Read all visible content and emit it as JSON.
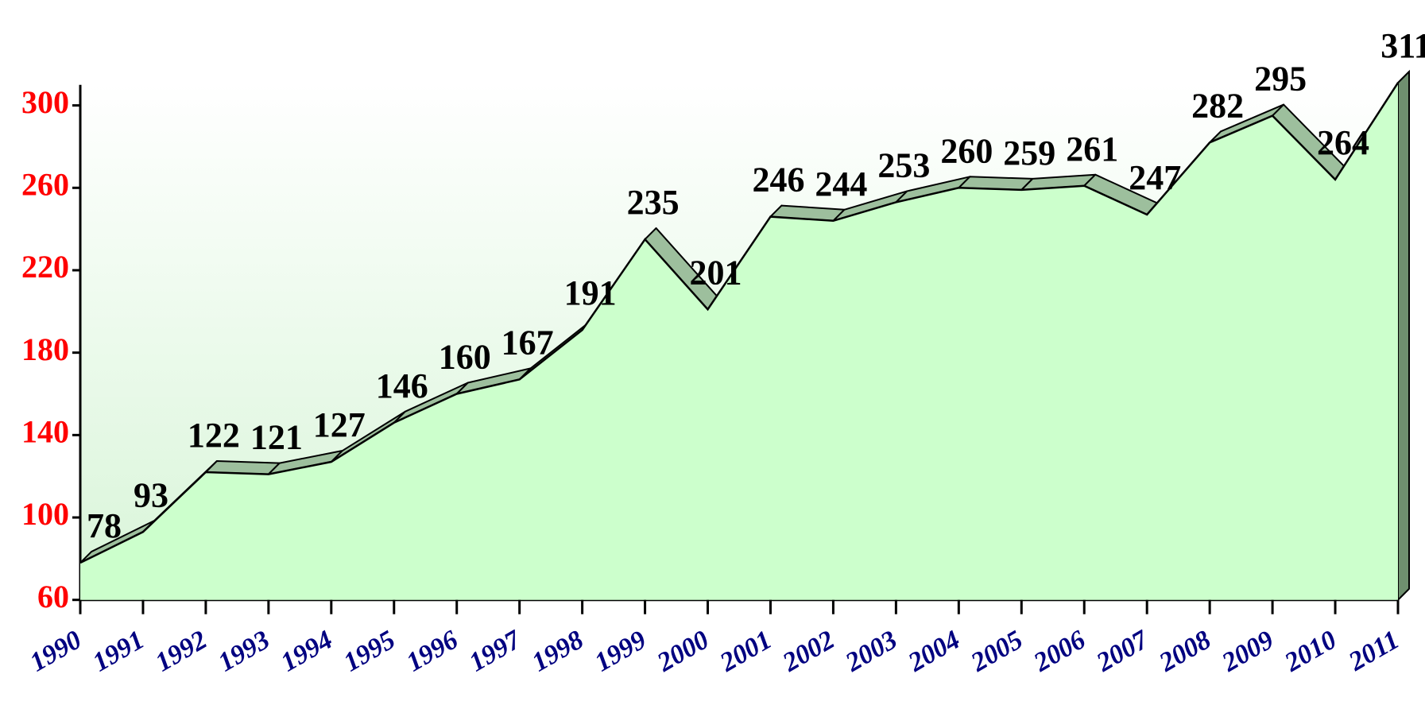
{
  "chart_data": {
    "type": "area3d",
    "categories": [
      "1990",
      "1991",
      "1992",
      "1993",
      "1994",
      "1995",
      "1996",
      "1997",
      "1998",
      "1999",
      "2000",
      "2001",
      "2002",
      "2003",
      "2004",
      "2005",
      "2006",
      "2007",
      "2008",
      "2009",
      "2010",
      "2011"
    ],
    "values": [
      78,
      93,
      122,
      121,
      127,
      146,
      160,
      167,
      191,
      235,
      201,
      246,
      244,
      253,
      260,
      259,
      261,
      247,
      282,
      295,
      264,
      311
    ],
    "color": "#ccffcc",
    "ylim": [
      60,
      310
    ],
    "yticks": [
      60,
      100,
      140,
      180,
      220,
      260,
      300
    ],
    "grid": false
  }
}
